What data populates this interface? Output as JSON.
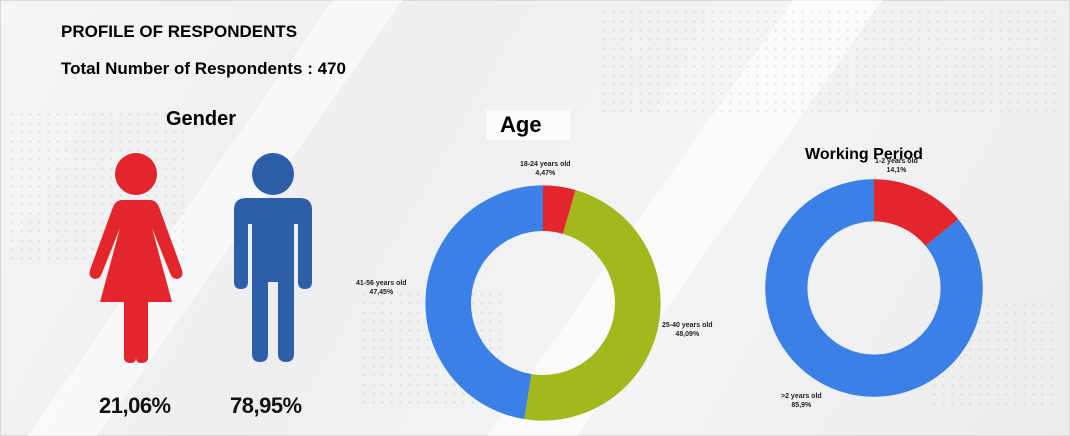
{
  "header": {
    "title": "PROFILE OF RESPONDENTS",
    "subtitle": "Total Number of Respondents : 470"
  },
  "chart_data": [
    {
      "type": "pictograph",
      "title": "Gender",
      "categories": [
        "Female",
        "Male"
      ],
      "values": [
        21.06,
        78.95
      ],
      "value_labels": [
        "21,06%",
        "78,95%"
      ],
      "colors": [
        "#e3262c",
        "#2e5ea8"
      ],
      "icons": [
        "female-person-icon",
        "male-person-icon"
      ]
    },
    {
      "type": "pie",
      "title": "Age",
      "donut": true,
      "categories": [
        "18-24 years old",
        "25-40 years old",
        "41-56 years old"
      ],
      "values": [
        4.47,
        48.09,
        47.45
      ],
      "value_labels": [
        "4,47%",
        "48,09%",
        "47,45%"
      ],
      "colors": [
        "#e3262c",
        "#a3b81c",
        "#3a80e6"
      ]
    },
    {
      "type": "pie",
      "title": "Working Period",
      "donut": true,
      "categories": [
        "1-2 years old",
        ">2 years old"
      ],
      "values": [
        14.1,
        85.9
      ],
      "value_labels": [
        "14,1%",
        "85,9%"
      ],
      "colors": [
        "#e3262c",
        "#3a80e6"
      ]
    }
  ]
}
